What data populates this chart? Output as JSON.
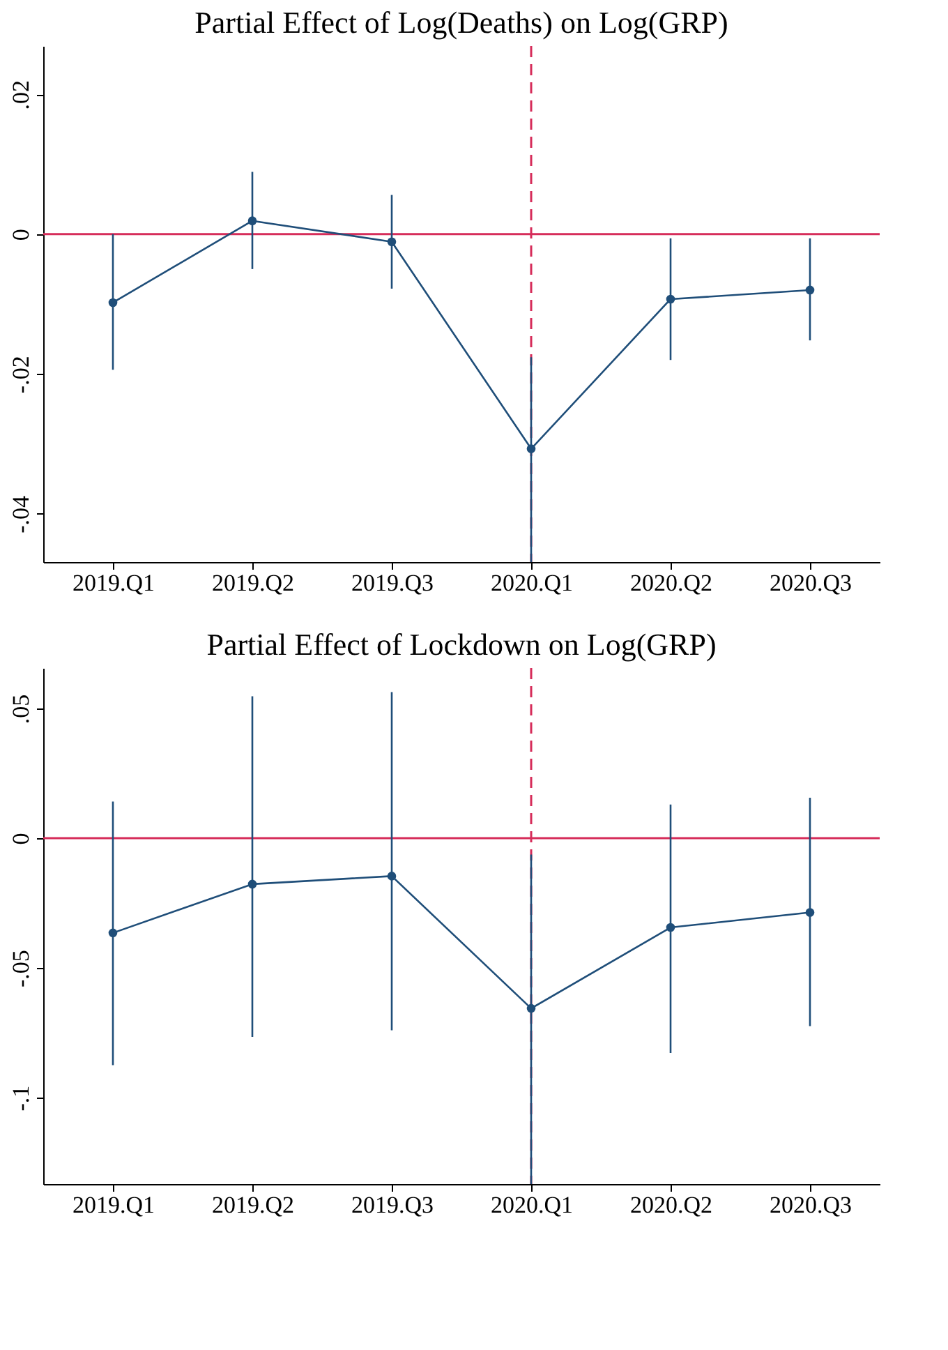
{
  "chart_data": [
    {
      "type": "line",
      "title": "Partial Effect of Log(Deaths) on Log(GRP)",
      "categories": [
        "2019.Q1",
        "2019.Q2",
        "2019.Q3",
        "2020.Q1",
        "2020.Q2",
        "2020.Q3"
      ],
      "series": [
        {
          "color": "#1f4e79",
          "values": [
            -0.0098,
            0.0019,
            -0.0011,
            -0.0307,
            -0.0093,
            -0.008
          ],
          "errors": [
            [
              -0.0194,
              0.0
            ],
            [
              -0.005,
              0.0089
            ],
            [
              -0.0078,
              0.0056
            ],
            [
              -0.0469,
              -0.0176
            ],
            [
              -0.018,
              -0.0006
            ],
            [
              -0.0152,
              -0.0006
            ]
          ]
        }
      ],
      "ylim": [
        -0.0469,
        0.0269
      ],
      "yticks": [
        {
          "value": -0.04,
          "label": "-.04"
        },
        {
          "value": -0.02,
          "label": "-.02"
        },
        0,
        {
          "value": 0.02,
          "label": ".02"
        }
      ],
      "marker": "circle",
      "line_style": "solid",
      "grid": false,
      "ref_lines": [
        {
          "axis": "y",
          "value": 0,
          "color": "#d62d5a",
          "line_style": "solid"
        },
        {
          "axis": "x",
          "value": "2020.Q1",
          "color": "#d62d5a",
          "line_style": "dashed"
        }
      ]
    },
    {
      "type": "line",
      "title": "Partial Effect of Lockdown on Log(GRP)",
      "categories": [
        "2019.Q1",
        "2019.Q2",
        "2019.Q3",
        "2020.Q1",
        "2020.Q2",
        "2020.Q3"
      ],
      "series": [
        {
          "color": "#1f4e79",
          "values": [
            -0.0365,
            -0.0177,
            -0.0146,
            -0.0656,
            -0.0344,
            -0.0286
          ],
          "errors": [
            [
              -0.0875,
              0.0141
            ],
            [
              -0.0766,
              0.0547
            ],
            [
              -0.074,
              0.0563
            ],
            [
              -0.1333,
              -0.0063
            ],
            [
              -0.0828,
              0.013
            ],
            [
              -0.0724,
              0.0156
            ]
          ]
        }
      ],
      "ylim": [
        -0.1333,
        0.0656
      ],
      "yticks": [
        {
          "value": -0.1,
          "label": "-.1"
        },
        {
          "value": -0.05,
          "label": "-.05"
        },
        0,
        {
          "value": 0.05,
          "label": ".05"
        }
      ],
      "marker": "circle",
      "line_style": "solid",
      "grid": false,
      "ref_lines": [
        {
          "axis": "y",
          "value": 0,
          "color": "#d62d5a",
          "line_style": "solid"
        },
        {
          "axis": "x",
          "value": "2020.Q1",
          "color": "#d62d5a",
          "line_style": "dashed"
        }
      ]
    }
  ]
}
